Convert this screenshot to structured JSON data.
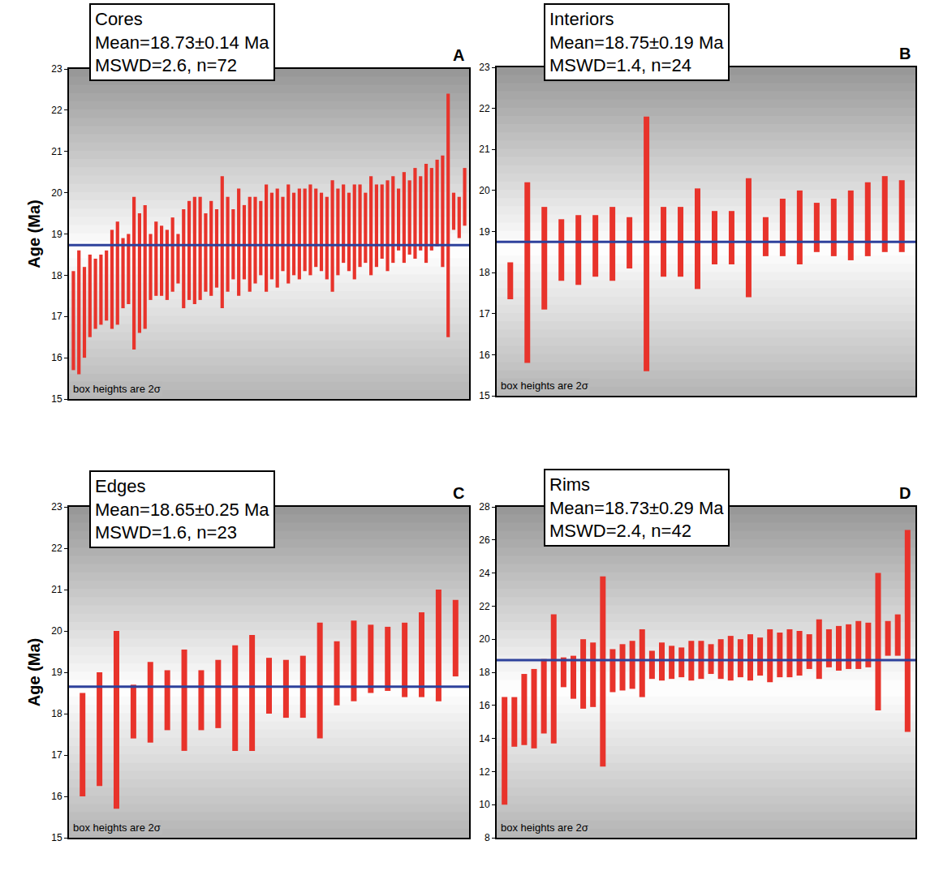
{
  "chart_data": [
    {
      "type": "errorbar",
      "panel": "A",
      "title": "Cores",
      "subtitle": [
        "Mean=18.73±0.14 Ma",
        "MSWD=2.6, n=72"
      ],
      "note": "box heights are 2σ",
      "ylabel": "Age (Ma)",
      "mean": 18.73,
      "color": "#e8332b",
      "tick_labels": "y",
      "ylim": [
        15,
        23
      ],
      "yticks": [
        15,
        16,
        17,
        18,
        19,
        20,
        21,
        22,
        23
      ],
      "values": [
        16.9,
        17.1,
        17.1,
        17.5,
        17.55,
        17.65,
        17.75,
        17.9,
        18.05,
        18.05,
        18.15,
        18.05,
        18.05,
        18.2,
        18.2,
        18.4,
        18.35,
        18.25,
        18.5,
        18.4,
        18.4,
        18.6,
        18.6,
        18.65,
        18.55,
        18.65,
        18.65,
        18.8,
        18.75,
        18.75,
        18.8,
        18.8,
        18.75,
        18.85,
        18.9,
        18.9,
        18.95,
        18.9,
        19.0,
        19.0,
        19.0,
        19.0,
        19.1,
        19.1,
        19.15,
        19.05,
        18.9,
        18.95,
        19.05,
        19.25,
        19.05,
        19.05,
        19.2,
        19.15,
        19.2,
        19.2,
        19.3,
        19.2,
        19.35,
        19.35,
        19.4,
        19.4,
        19.5,
        19.5,
        19.5,
        19.6,
        19.75,
        19.55,
        19.45,
        19.55,
        19.4,
        19.9
      ],
      "errors": [
        1.2,
        1.5,
        1.1,
        1.0,
        0.85,
        0.85,
        0.85,
        1.2,
        1.25,
        0.85,
        0.85,
        1.85,
        1.45,
        1.5,
        0.8,
        0.9,
        0.85,
        0.85,
        0.9,
        0.6,
        1.2,
        1.2,
        1.3,
        1.25,
        0.95,
        1.15,
        0.95,
        1.6,
        1.15,
        0.85,
        1.3,
        0.9,
        1.15,
        1.05,
        0.9,
        1.3,
        1.05,
        1.2,
        0.9,
        1.2,
        1.0,
        1.1,
        1.0,
        1.1,
        0.95,
        0.95,
        1.0,
        1.35,
        1.05,
        0.95,
        0.95,
        1.15,
        1.0,
        0.85,
        1.2,
        1.0,
        0.9,
        1.1,
        1.05,
        0.75,
        1.1,
        0.9,
        1.1,
        0.9,
        1.2,
        1.0,
        1.05,
        1.35,
        2.95,
        0.45,
        0.5,
        0.7
      ]
    },
    {
      "type": "errorbar",
      "panel": "B",
      "title": "Interiors",
      "subtitle": [
        "Mean=18.75±0.19 Ma",
        "MSWD=1.4, n=24"
      ],
      "note": "box heights are 2σ",
      "mean": 18.75,
      "color": "#e8332b",
      "tick_labels": "y",
      "ylim": [
        15,
        23
      ],
      "yticks": [
        15,
        16,
        17,
        18,
        19,
        20,
        21,
        22,
        23
      ],
      "values": [
        17.8,
        18.0,
        18.35,
        18.55,
        18.55,
        18.65,
        18.7,
        18.725,
        18.7,
        18.75,
        18.75,
        18.825,
        18.85,
        18.85,
        18.85,
        18.875,
        19.1,
        19.1,
        19.1,
        19.1,
        19.15,
        19.3,
        19.425,
        19.375
      ],
      "errors": [
        0.45,
        2.2,
        1.25,
        0.75,
        0.85,
        0.75,
        0.9,
        0.625,
        3.1,
        0.85,
        0.85,
        1.225,
        0.65,
        0.65,
        1.45,
        0.475,
        0.7,
        0.9,
        0.6,
        0.7,
        0.85,
        0.9,
        0.925,
        0.875
      ]
    },
    {
      "type": "errorbar",
      "panel": "C",
      "title": "Edges",
      "subtitle": [
        "Mean=18.65±0.25 Ma",
        "MSWD=1.6, n=23"
      ],
      "note": "box heights are 2σ",
      "ylabel": "Age (Ma)",
      "mean": 18.65,
      "color": "#e8332b",
      "tick_labels": "y",
      "ylim": [
        15,
        23
      ],
      "yticks": [
        15,
        16,
        17,
        18,
        19,
        20,
        21,
        22,
        23
      ],
      "values": [
        17.25,
        17.625,
        17.85,
        18.05,
        18.275,
        18.325,
        18.325,
        18.325,
        18.475,
        18.375,
        18.5,
        18.675,
        18.6,
        18.65,
        18.8,
        18.975,
        19.275,
        19.325,
        19.325,
        19.3,
        19.425,
        19.65,
        19.825
      ],
      "errors": [
        1.25,
        1.375,
        2.15,
        0.65,
        0.975,
        0.725,
        1.225,
        0.725,
        0.825,
        1.275,
        1.4,
        0.675,
        0.7,
        0.75,
        1.4,
        0.775,
        0.975,
        0.825,
        0.775,
        0.9,
        1.025,
        1.35,
        0.925
      ]
    },
    {
      "type": "errorbar",
      "panel": "D",
      "title": "Rims",
      "subtitle": [
        "Mean=18.73±0.29 Ma",
        "MSWD=2.4, n=42"
      ],
      "note": "box heights are 2σ",
      "mean": 18.73,
      "color": "#e8332b",
      "tick_labels": "y",
      "ylim": [
        8,
        28
      ],
      "yticks": [
        8,
        10,
        12,
        14,
        16,
        18,
        20,
        22,
        24,
        26,
        28
      ],
      "values": [
        13.25,
        15.0,
        15.75,
        15.8,
        16.55,
        17.6,
        18.0,
        17.7,
        17.9,
        17.85,
        18.05,
        18.1,
        18.3,
        18.45,
        18.55,
        18.45,
        18.65,
        18.6,
        18.6,
        18.7,
        18.75,
        18.8,
        18.8,
        18.85,
        18.85,
        18.9,
        18.95,
        19.0,
        19.05,
        19.15,
        19.15,
        19.25,
        19.4,
        19.45,
        19.45,
        19.55,
        19.65,
        19.65,
        19.85,
        20.05,
        20.25,
        20.5
      ],
      "errors": [
        3.25,
        1.5,
        2.15,
        2.4,
        2.25,
        3.9,
        0.9,
        1.3,
        2.1,
        1.95,
        5.75,
        1.3,
        1.4,
        1.45,
        2.05,
        0.85,
        1.15,
        1.0,
        0.9,
        1.2,
        1.15,
        0.9,
        1.2,
        1.35,
        1.15,
        1.4,
        1.15,
        1.6,
        1.35,
        1.45,
        1.35,
        1.05,
        1.8,
        1.15,
        1.35,
        1.35,
        1.45,
        1.35,
        4.15,
        1.05,
        1.25,
        6.1
      ]
    }
  ]
}
